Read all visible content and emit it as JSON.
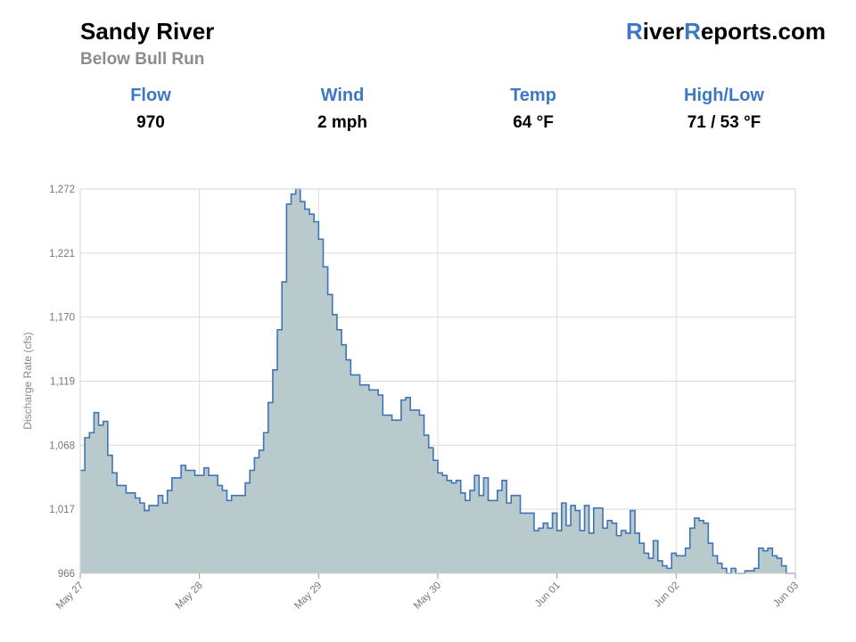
{
  "header": {
    "river_name": "Sandy River",
    "section": "Below Bull Run",
    "brand_first_letter": "R",
    "brand_part2": "iver",
    "brand_second_letter": "R",
    "brand_part3": "eports.com"
  },
  "stats": [
    {
      "label": "Flow",
      "value": "970"
    },
    {
      "label": "Wind",
      "value": "2 mph"
    },
    {
      "label": "Temp",
      "value": "64 °F"
    },
    {
      "label": "High/Low",
      "value": "71 / 53 °F"
    }
  ],
  "colors": {
    "accent": "#3d78c4",
    "line": "#3f74b8",
    "area_fill": "#b9cacc",
    "grid": "#dcdcdc"
  },
  "chart_data": {
    "type": "area",
    "step": true,
    "ylabel": "Discharge Rate (cfs)",
    "xlabel": "",
    "ylim": [
      966,
      1272
    ],
    "yticks": [
      "966",
      "1,017",
      "1,068",
      "1,119",
      "1,170",
      "1,221",
      "1,272"
    ],
    "ytick_values": [
      966,
      1017,
      1068,
      1119,
      1170,
      1221,
      1272
    ],
    "xticks": [
      "May 27",
      "May 28",
      "May 29",
      "May 30",
      "Jun 01",
      "Jun 02",
      "Jun 03"
    ],
    "x_unit": "hours from May 27 00:00",
    "grid": true,
    "series": [
      {
        "values": [
          1048,
          1074,
          1078,
          1094,
          1084,
          1087,
          1060,
          1046,
          1036,
          1036,
          1030,
          1030,
          1026,
          1022,
          1016,
          1020,
          1020,
          1028,
          1022,
          1032,
          1042,
          1042,
          1052,
          1048,
          1048,
          1044,
          1044,
          1050,
          1044,
          1044,
          1036,
          1032,
          1024,
          1028,
          1028,
          1028,
          1038,
          1048,
          1058,
          1064,
          1078,
          1102,
          1128,
          1160,
          1198,
          1260,
          1268,
          1272,
          1262,
          1256,
          1252,
          1246,
          1232,
          1210,
          1188,
          1172,
          1160,
          1148,
          1136,
          1124,
          1124,
          1116,
          1116,
          1112,
          1112,
          1108,
          1092,
          1092,
          1088,
          1088,
          1104,
          1106,
          1096,
          1096,
          1092,
          1076,
          1066,
          1056,
          1046,
          1044,
          1040,
          1038,
          1040,
          1030,
          1024,
          1032,
          1044,
          1028,
          1042,
          1024,
          1024,
          1032,
          1040,
          1022,
          1028,
          1028,
          1014,
          1014,
          1014,
          1000,
          1002,
          1006,
          1002,
          1014,
          1000,
          1022,
          1004,
          1020,
          1016,
          1000,
          1020,
          998,
          1018,
          1018,
          1002,
          1008,
          1006,
          996,
          1000,
          998,
          1016,
          998,
          990,
          982,
          978,
          992,
          976,
          972,
          970,
          982,
          980,
          980,
          986,
          1002,
          1010,
          1008,
          1006,
          990,
          980,
          974,
          970,
          966,
          970,
          966,
          966,
          968,
          968,
          970,
          986,
          984,
          986,
          980,
          978,
          972,
          966,
          966
        ]
      }
    ]
  }
}
